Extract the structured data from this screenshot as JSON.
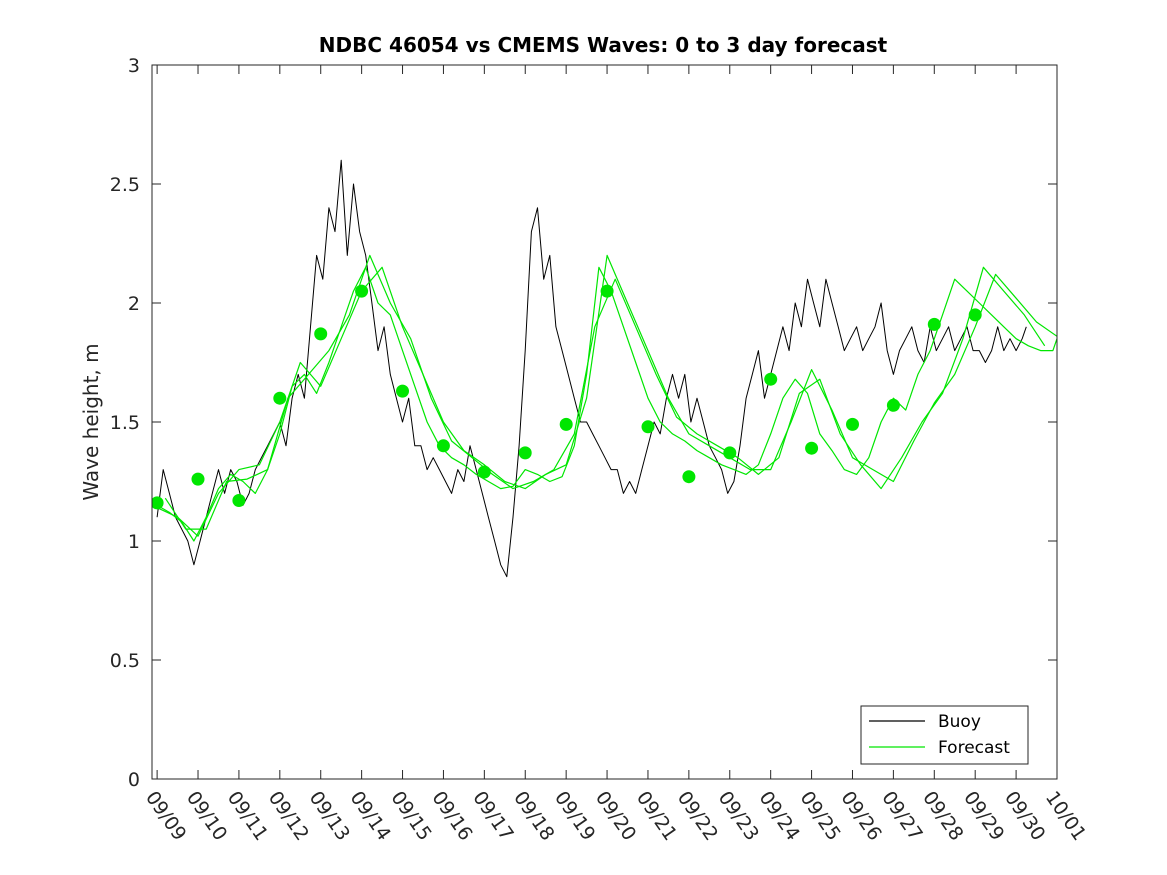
{
  "chart_data": {
    "type": "line",
    "title": "NDBC 46054 vs CMEMS Waves: 0 to 3 day forecast",
    "xlabel": "",
    "ylabel": "Wave height, m",
    "xlim": [
      "09/08 21:00",
      "10/01"
    ],
    "ylim": [
      0,
      3
    ],
    "yticks": [
      "0",
      "0.5",
      "1",
      "1.5",
      "2",
      "2.5",
      "3"
    ],
    "xticks": [
      "09/09",
      "09/10",
      "09/11",
      "09/12",
      "09/13",
      "09/14",
      "09/15",
      "09/16",
      "09/17",
      "09/18",
      "09/19",
      "09/20",
      "09/21",
      "09/22",
      "09/23",
      "09/24",
      "09/25",
      "09/26",
      "09/27",
      "09/28",
      "09/29",
      "09/30",
      "10/01"
    ],
    "grid": false,
    "legend": {
      "position": "bottom-right",
      "entries": [
        "Buoy",
        "Forecast"
      ]
    },
    "colors": {
      "buoy": "#000000",
      "forecast": "#00e600",
      "axis": "#262626"
    },
    "series": [
      {
        "name": "Buoy",
        "x_days": [
          0,
          0.15,
          0.3,
          0.45,
          0.6,
          0.75,
          0.9,
          1.05,
          1.2,
          1.35,
          1.5,
          1.65,
          1.8,
          1.95,
          2.1,
          2.25,
          2.4,
          2.55,
          2.7,
          2.85,
          3,
          3.15,
          3.3,
          3.45,
          3.6,
          3.75,
          3.9,
          4.05,
          4.2,
          4.35,
          4.5,
          4.65,
          4.8,
          4.95,
          5.1,
          5.25,
          5.4,
          5.55,
          5.7,
          5.85,
          6,
          6.15,
          6.3,
          6.45,
          6.6,
          6.75,
          6.9,
          7.05,
          7.2,
          7.35,
          7.5,
          7.65,
          7.8,
          7.95,
          8.1,
          8.25,
          8.4,
          8.55,
          8.7,
          8.85,
          9,
          9.15,
          9.3,
          9.45,
          9.6,
          9.75,
          9.9,
          10.05,
          10.2,
          10.35,
          10.5,
          10.65,
          10.8,
          10.95,
          11.1,
          11.25,
          11.4,
          11.55,
          11.7,
          11.85,
          12,
          12.15,
          12.3,
          12.45,
          12.6,
          12.75,
          12.9,
          13.05,
          13.2,
          13.35,
          13.5,
          13.65,
          13.8,
          13.95,
          14.1,
          14.25,
          14.4,
          14.55,
          14.7,
          14.85,
          15,
          15.15,
          15.3,
          15.45,
          15.6,
          15.75,
          15.9,
          16.05,
          16.2,
          16.35,
          16.5,
          16.65,
          16.8,
          16.95,
          17.1,
          17.25,
          17.4,
          17.55,
          17.7,
          17.85,
          18,
          18.15,
          18.3,
          18.45,
          18.6,
          18.75,
          18.9,
          19.05,
          19.2,
          19.35,
          19.5,
          19.65,
          19.8,
          19.95,
          20.1,
          20.25,
          20.4,
          20.55,
          20.7,
          20.85,
          21,
          21.15,
          21.25
        ],
        "values": [
          1.1,
          1.3,
          1.2,
          1.1,
          1.05,
          1.0,
          0.9,
          1.0,
          1.1,
          1.2,
          1.3,
          1.2,
          1.3,
          1.25,
          1.15,
          1.2,
          1.3,
          1.35,
          1.4,
          1.45,
          1.5,
          1.4,
          1.6,
          1.7,
          1.6,
          1.9,
          2.2,
          2.1,
          2.4,
          2.3,
          2.6,
          2.2,
          2.5,
          2.3,
          2.2,
          2.0,
          1.8,
          1.9,
          1.7,
          1.6,
          1.5,
          1.6,
          1.4,
          1.4,
          1.3,
          1.35,
          1.3,
          1.25,
          1.2,
          1.3,
          1.25,
          1.4,
          1.3,
          1.2,
          1.1,
          1.0,
          0.9,
          0.85,
          1.1,
          1.4,
          1.8,
          2.3,
          2.4,
          2.1,
          2.2,
          1.9,
          1.8,
          1.7,
          1.6,
          1.5,
          1.5,
          1.45,
          1.4,
          1.35,
          1.3,
          1.3,
          1.2,
          1.25,
          1.2,
          1.3,
          1.4,
          1.5,
          1.45,
          1.6,
          1.7,
          1.6,
          1.7,
          1.5,
          1.6,
          1.5,
          1.4,
          1.35,
          1.3,
          1.2,
          1.25,
          1.4,
          1.6,
          1.7,
          1.8,
          1.6,
          1.7,
          1.8,
          1.9,
          1.8,
          2.0,
          1.9,
          2.1,
          2.0,
          1.9,
          2.1,
          2.0,
          1.9,
          1.8,
          1.85,
          1.9,
          1.8,
          1.85,
          1.9,
          2.0,
          1.8,
          1.7,
          1.8,
          1.85,
          1.9,
          1.8,
          1.75,
          1.9,
          1.8,
          1.85,
          1.9,
          1.8,
          1.85,
          1.9,
          1.8,
          1.8,
          1.75,
          1.8,
          1.9,
          1.8,
          1.85,
          1.8,
          1.85,
          1.9
        ]
      },
      {
        "name": "Forecast",
        "x_days": [
          0,
          0.3,
          0.6,
          0.9,
          1.2,
          1.5,
          1.8,
          2.1,
          2.4,
          2.7,
          3,
          3.3,
          3.6,
          3.9,
          4.2,
          4.5,
          4.8,
          5.1,
          5.4,
          5.7,
          6,
          6.3,
          6.6,
          6.9,
          7.2,
          7.5,
          7.8,
          8.1,
          8.4,
          8.7,
          9,
          9.3,
          9.6,
          9.9,
          10.2,
          10.5,
          10.8,
          11.1,
          11.4,
          11.7,
          12,
          12.3,
          12.6,
          12.9,
          13.2,
          13.5,
          13.8,
          14.1,
          14.4,
          14.7,
          15,
          15.3,
          15.6,
          15.9,
          16.2,
          16.5,
          16.8,
          17.1,
          17.4,
          17.7,
          18,
          18.3,
          18.6,
          18.9,
          19.2,
          19.5,
          19.8,
          20.1,
          20.4,
          20.7,
          21,
          21.3,
          21.6,
          21.9,
          22
        ],
        "values": [
          1.15,
          1.12,
          1.08,
          1.0,
          1.1,
          1.22,
          1.28,
          1.25,
          1.2,
          1.3,
          1.45,
          1.65,
          1.7,
          1.62,
          1.75,
          1.9,
          2.05,
          2.15,
          2.0,
          1.95,
          1.8,
          1.65,
          1.5,
          1.4,
          1.35,
          1.32,
          1.28,
          1.25,
          1.22,
          1.23,
          1.3,
          1.28,
          1.25,
          1.27,
          1.4,
          1.7,
          2.15,
          2.05,
          1.9,
          1.75,
          1.6,
          1.5,
          1.45,
          1.42,
          1.38,
          1.35,
          1.32,
          1.3,
          1.28,
          1.32,
          1.45,
          1.6,
          1.68,
          1.62,
          1.45,
          1.38,
          1.3,
          1.28,
          1.35,
          1.5,
          1.6,
          1.55,
          1.7,
          1.8,
          1.95,
          2.1,
          2.05,
          2.0,
          1.95,
          1.9,
          1.85,
          1.82,
          1.8,
          1.8,
          1.85
        ]
      },
      {
        "name": "Forecast",
        "x_days": [
          0,
          0.5,
          1.0,
          1.5,
          2.0,
          2.5,
          3.0,
          3.5,
          4.0,
          4.5,
          5.0,
          5.5,
          6.0,
          6.5,
          7.0,
          7.5,
          8.0,
          8.5,
          9.0,
          9.5,
          10.0,
          10.5,
          11.0,
          11.5,
          12.0,
          12.5,
          13.0,
          13.5,
          14.0,
          14.5,
          15.0,
          15.5,
          16.0,
          16.5,
          17.0,
          17.5,
          18.0,
          18.5,
          19.0,
          19.5,
          20.0,
          20.5,
          21.0,
          21.5,
          22.0
        ],
        "values": [
          1.14,
          1.1,
          1.02,
          1.2,
          1.3,
          1.32,
          1.5,
          1.75,
          1.65,
          1.85,
          2.05,
          2.15,
          1.9,
          1.7,
          1.5,
          1.38,
          1.32,
          1.25,
          1.22,
          1.28,
          1.32,
          1.6,
          2.2,
          2.0,
          1.8,
          1.6,
          1.45,
          1.4,
          1.35,
          1.3,
          1.3,
          1.5,
          1.72,
          1.55,
          1.35,
          1.3,
          1.25,
          1.42,
          1.58,
          1.7,
          1.9,
          2.12,
          2.02,
          1.92,
          1.86
        ]
      },
      {
        "name": "Forecast",
        "x_days": [
          0.2,
          0.7,
          1.2,
          1.7,
          2.2,
          2.7,
          3.2,
          3.7,
          4.2,
          4.7,
          5.2,
          5.7,
          6.2,
          6.7,
          7.2,
          7.7,
          8.2,
          8.7,
          9.2,
          9.7,
          10.2,
          10.7,
          11.2,
          11.7,
          12.2,
          12.7,
          13.2,
          13.7,
          14.2,
          14.7,
          15.2,
          15.7,
          16.2,
          16.7,
          17.2,
          17.7,
          18.2,
          18.7,
          19.2,
          19.7,
          20.2,
          20.7,
          21.2,
          21.7
        ],
        "values": [
          1.18,
          1.05,
          1.05,
          1.25,
          1.26,
          1.3,
          1.6,
          1.7,
          1.8,
          1.95,
          2.2,
          2.0,
          1.85,
          1.6,
          1.42,
          1.35,
          1.28,
          1.22,
          1.25,
          1.3,
          1.45,
          1.9,
          2.1,
          1.9,
          1.7,
          1.52,
          1.45,
          1.4,
          1.35,
          1.28,
          1.35,
          1.62,
          1.68,
          1.45,
          1.32,
          1.22,
          1.35,
          1.5,
          1.62,
          1.85,
          2.15,
          2.05,
          1.95,
          1.82
        ]
      }
    ],
    "forecast_markers": {
      "x_days": [
        0,
        1,
        2,
        3,
        4,
        5,
        6,
        7,
        8,
        9,
        10,
        11,
        12,
        13,
        14,
        15,
        16,
        17,
        18,
        19,
        20
      ],
      "values": [
        1.16,
        1.26,
        1.17,
        1.6,
        1.87,
        2.05,
        1.63,
        1.4,
        1.29,
        1.37,
        1.49,
        2.05,
        1.48,
        1.27,
        1.37,
        1.68,
        1.39,
        1.49,
        1.57,
        1.91,
        1.95
      ]
    }
  }
}
